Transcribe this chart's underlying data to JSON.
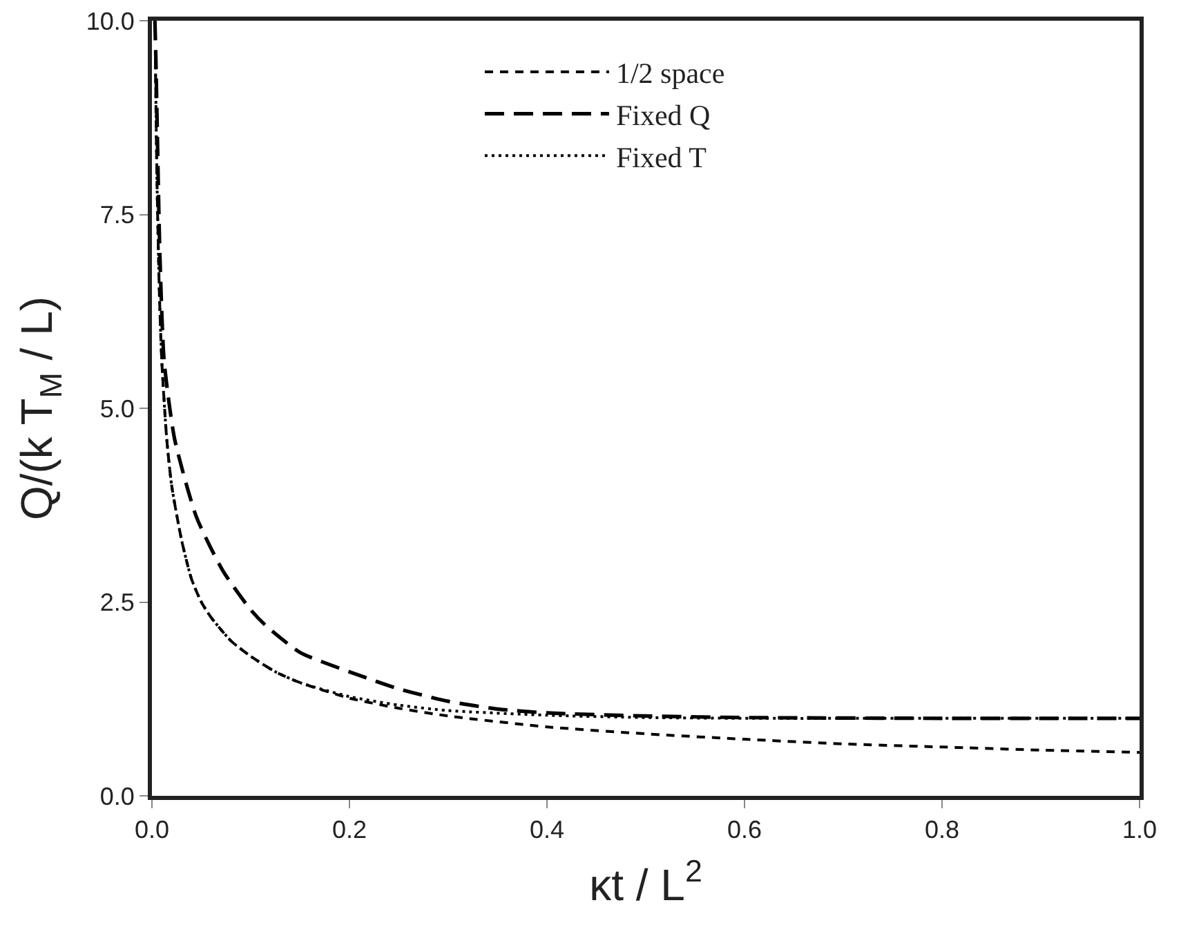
{
  "chart_data": {
    "type": "line",
    "xlabel": "κt / L$^{2}$",
    "ylabel": "Q/(k T$_{M}$ / L)",
    "xlim": [
      0,
      1
    ],
    "ylim": [
      0,
      10
    ],
    "xticks": [
      {
        "value": 0,
        "label": "0.0"
      },
      {
        "value": 0.2,
        "label": "0.2"
      },
      {
        "value": 0.4,
        "label": "0.4"
      },
      {
        "value": 0.6,
        "label": "0.6"
      },
      {
        "value": 0.8,
        "label": "0.8"
      },
      {
        "value": 1,
        "label": "1.0"
      }
    ],
    "yticks": [
      {
        "value": 0,
        "label": "0.0"
      },
      {
        "value": 2.5,
        "label": "2.5"
      },
      {
        "value": 5,
        "label": "5.0"
      },
      {
        "value": 7.5,
        "label": "7.5"
      },
      {
        "value": 10,
        "label": "10.0"
      }
    ],
    "grid": false,
    "legend": "top",
    "marker": "none",
    "series": [
      {
        "name": "1/2 space",
        "color": "#000000",
        "line_style": "dashed",
        "x": [
          0.0035,
          0.005,
          0.0075,
          0.01,
          0.015,
          0.02,
          0.03,
          0.04,
          0.05,
          0.06,
          0.08,
          0.1,
          0.125,
          0.15,
          0.2,
          0.25,
          0.3,
          0.4,
          0.5,
          0.6,
          0.7,
          0.8,
          0.9,
          1.0
        ],
        "values": [
          9.5,
          8.0,
          6.5,
          5.6,
          4.6,
          4.0,
          3.3,
          2.8,
          2.5,
          2.3,
          2.0,
          1.8,
          1.6,
          1.46,
          1.26,
          1.13,
          1.03,
          0.89,
          0.8,
          0.73,
          0.67,
          0.63,
          0.59,
          0.56
        ]
      },
      {
        "name": "Fixed Q",
        "color": "#000000",
        "line_style": "dashed",
        "x": [
          0.003,
          0.004,
          0.008,
          0.0124,
          0.023,
          0.045,
          0.072,
          0.1,
          0.115,
          0.15,
          0.2,
          0.25,
          0.3,
          0.35,
          0.4,
          0.5,
          0.6,
          0.8,
          1.0
        ],
        "values": [
          10.0,
          9.5,
          7.0,
          5.6,
          4.6,
          3.6,
          2.9,
          2.4,
          2.2,
          1.85,
          1.6,
          1.38,
          1.22,
          1.12,
          1.07,
          1.03,
          1.01,
          1.0,
          1.0
        ]
      },
      {
        "name": "Fixed T",
        "color": "#000000",
        "line_style": "dotted",
        "x": [
          0.0035,
          0.005,
          0.0075,
          0.01,
          0.015,
          0.02,
          0.03,
          0.04,
          0.05,
          0.06,
          0.08,
          0.1,
          0.125,
          0.15,
          0.2,
          0.25,
          0.3,
          0.4,
          0.5,
          0.6,
          0.8,
          1.0
        ],
        "values": [
          9.5,
          8.0,
          6.5,
          5.6,
          4.6,
          4.0,
          3.3,
          2.8,
          2.5,
          2.3,
          2.0,
          1.8,
          1.6,
          1.46,
          1.28,
          1.17,
          1.1,
          1.04,
          1.01,
          1.0,
          1.0,
          1.0
        ]
      }
    ]
  }
}
